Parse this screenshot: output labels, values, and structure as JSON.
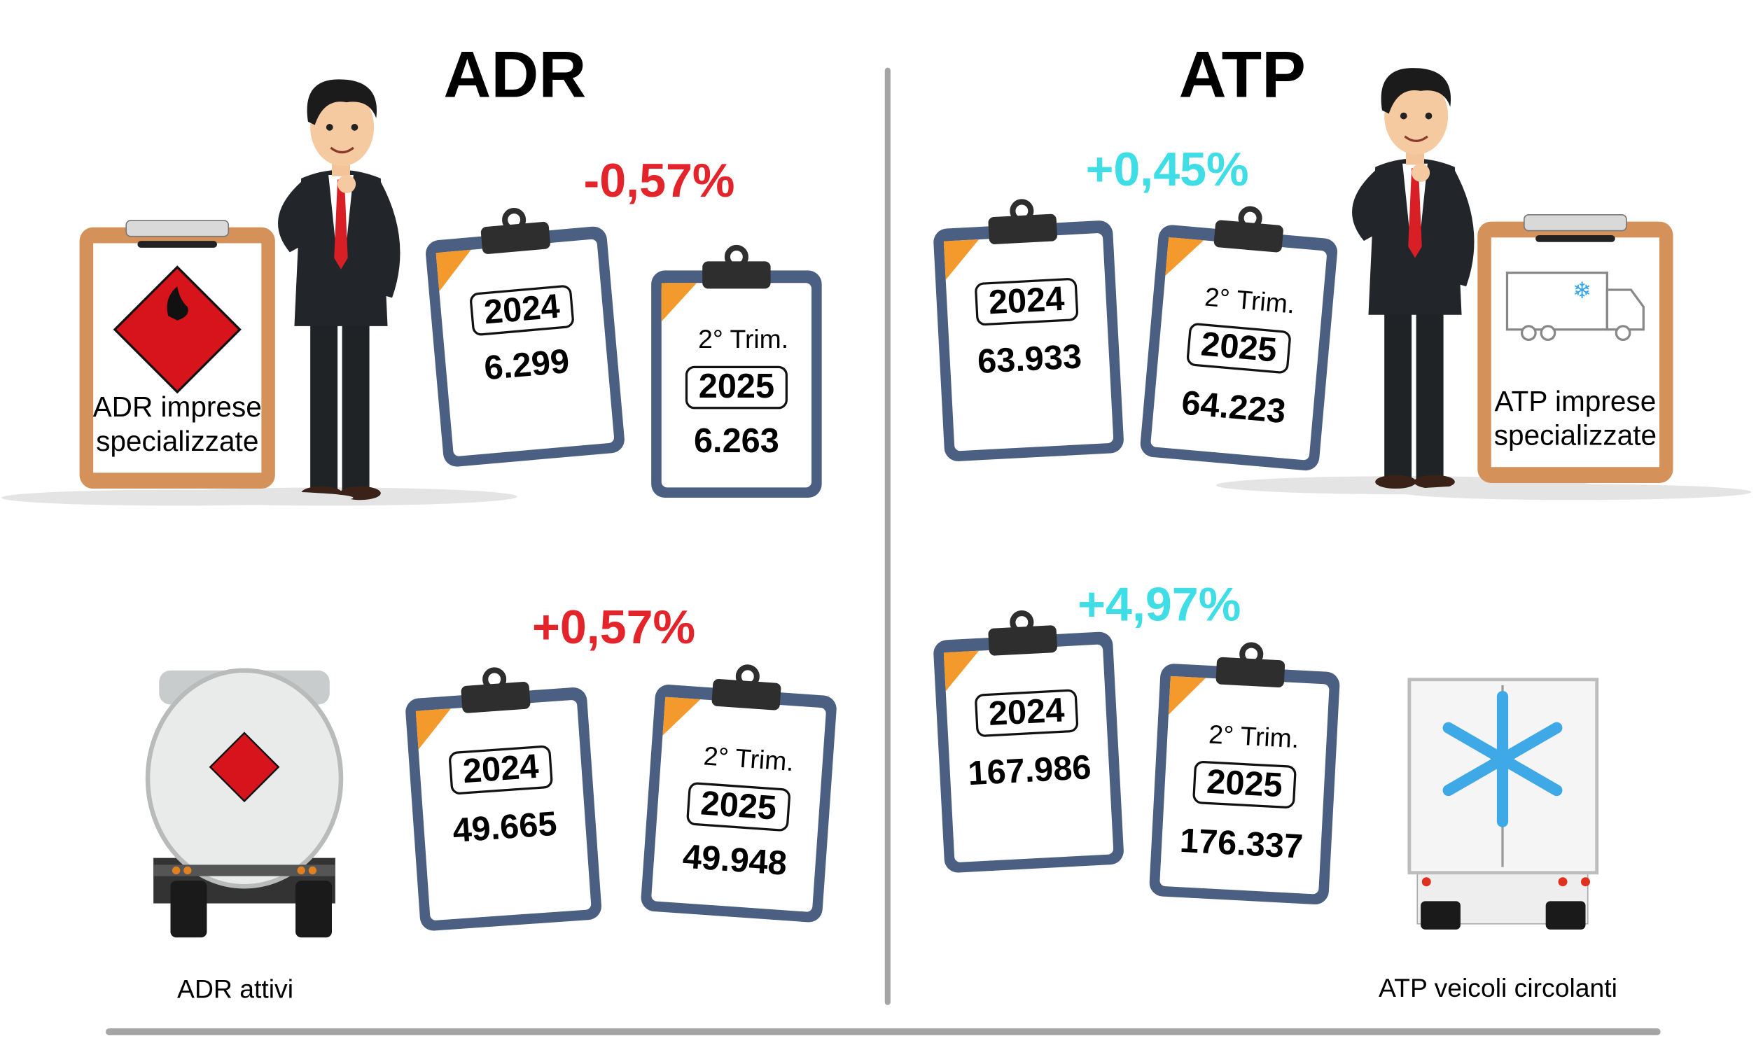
{
  "sections": [
    {
      "title": "ADR",
      "panels": [
        {
          "label_lines": [
            "ADR imprese",
            "specializzate"
          ],
          "change": "-0,57%",
          "change_color": "#e3242b",
          "year_a": "2024",
          "value_a": "6.299",
          "period_b": "2° Trim.",
          "year_b": "2025",
          "value_b": "6.263"
        },
        {
          "label_lines": [
            "ADR attivi"
          ],
          "change": "+0,57%",
          "change_color": "#e3242b",
          "year_a": "2024",
          "value_a": "49.665",
          "period_b": "2° Trim.",
          "year_b": "2025",
          "value_b": "49.948"
        }
      ]
    },
    {
      "title": "ATP",
      "panels": [
        {
          "label_lines": [
            "ATP imprese",
            "specializzate"
          ],
          "change": "+0,45%",
          "change_color": "#3fdde6",
          "year_a": "2024",
          "value_a": "63.933",
          "period_b": "2° Trim.",
          "year_b": "2025",
          "value_b": "64.223"
        },
        {
          "label_lines": [
            "ATP veicoli circolanti"
          ],
          "change": "+4,97%",
          "change_color": "#3fdde6",
          "year_a": "2024",
          "value_a": "167.986",
          "period_b": "2° Trim.",
          "year_b": "2025",
          "value_b": "176.337"
        }
      ]
    }
  ]
}
